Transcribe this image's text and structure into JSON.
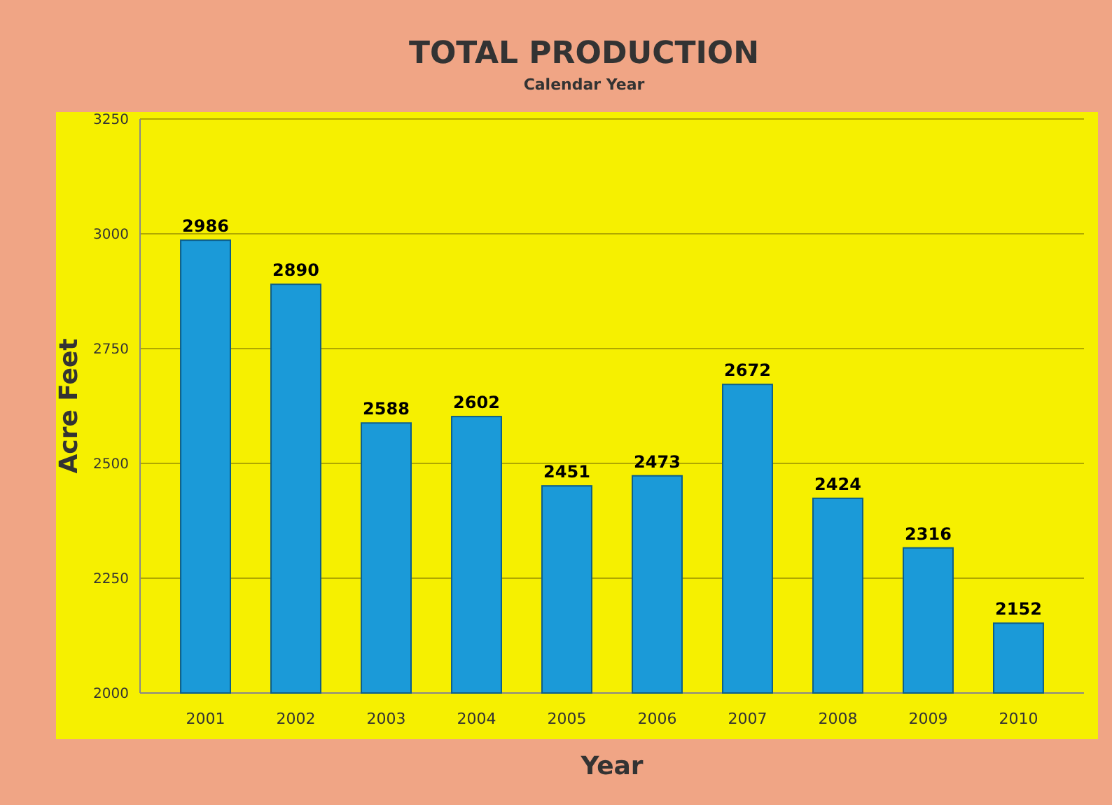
{
  "chart_data": {
    "type": "bar",
    "title": "TOTAL PRODUCTION",
    "subtitle": "Calendar Year",
    "xlabel": "Year",
    "ylabel": "Acre Feet",
    "categories": [
      "2001",
      "2002",
      "2003",
      "2004",
      "2005",
      "2006",
      "2007",
      "2008",
      "2009",
      "2010"
    ],
    "values": [
      2986,
      2890,
      2588,
      2602,
      2451,
      2473,
      2672,
      2424,
      2316,
      2152
    ],
    "color": "#1b9ad8",
    "ylim": [
      2000,
      3250
    ],
    "yticks": [
      2000,
      2250,
      2500,
      2750,
      3000,
      3250
    ],
    "grid": "y",
    "data_labels": true
  }
}
